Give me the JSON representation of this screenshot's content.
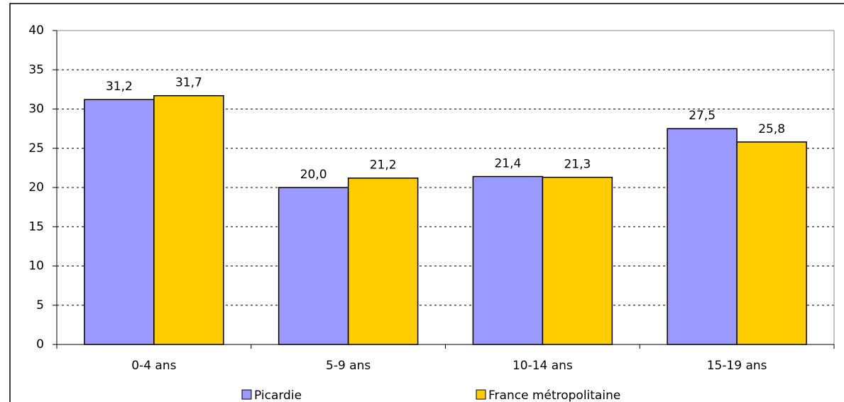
{
  "chart_data": {
    "type": "bar",
    "categories": [
      "0-4 ans",
      "5-9 ans",
      "10-14 ans",
      "15-19 ans"
    ],
    "series": [
      {
        "name": "Picardie",
        "color": "#9999ff",
        "values": [
          31.2,
          20.0,
          21.4,
          27.5
        ],
        "value_labels": [
          "31,2",
          "20,0",
          "21,4",
          "27,5"
        ]
      },
      {
        "name": "France métropolitaine",
        "color": "#ffcc00",
        "values": [
          31.7,
          21.2,
          21.3,
          25.8
        ],
        "value_labels": [
          "31,7",
          "21,2",
          "21,3",
          "25,8"
        ]
      }
    ],
    "ylim": [
      0,
      40
    ],
    "yticks": [
      0,
      5,
      10,
      15,
      20,
      25,
      30,
      35,
      40
    ],
    "grid": true,
    "legend": "bottom"
  }
}
